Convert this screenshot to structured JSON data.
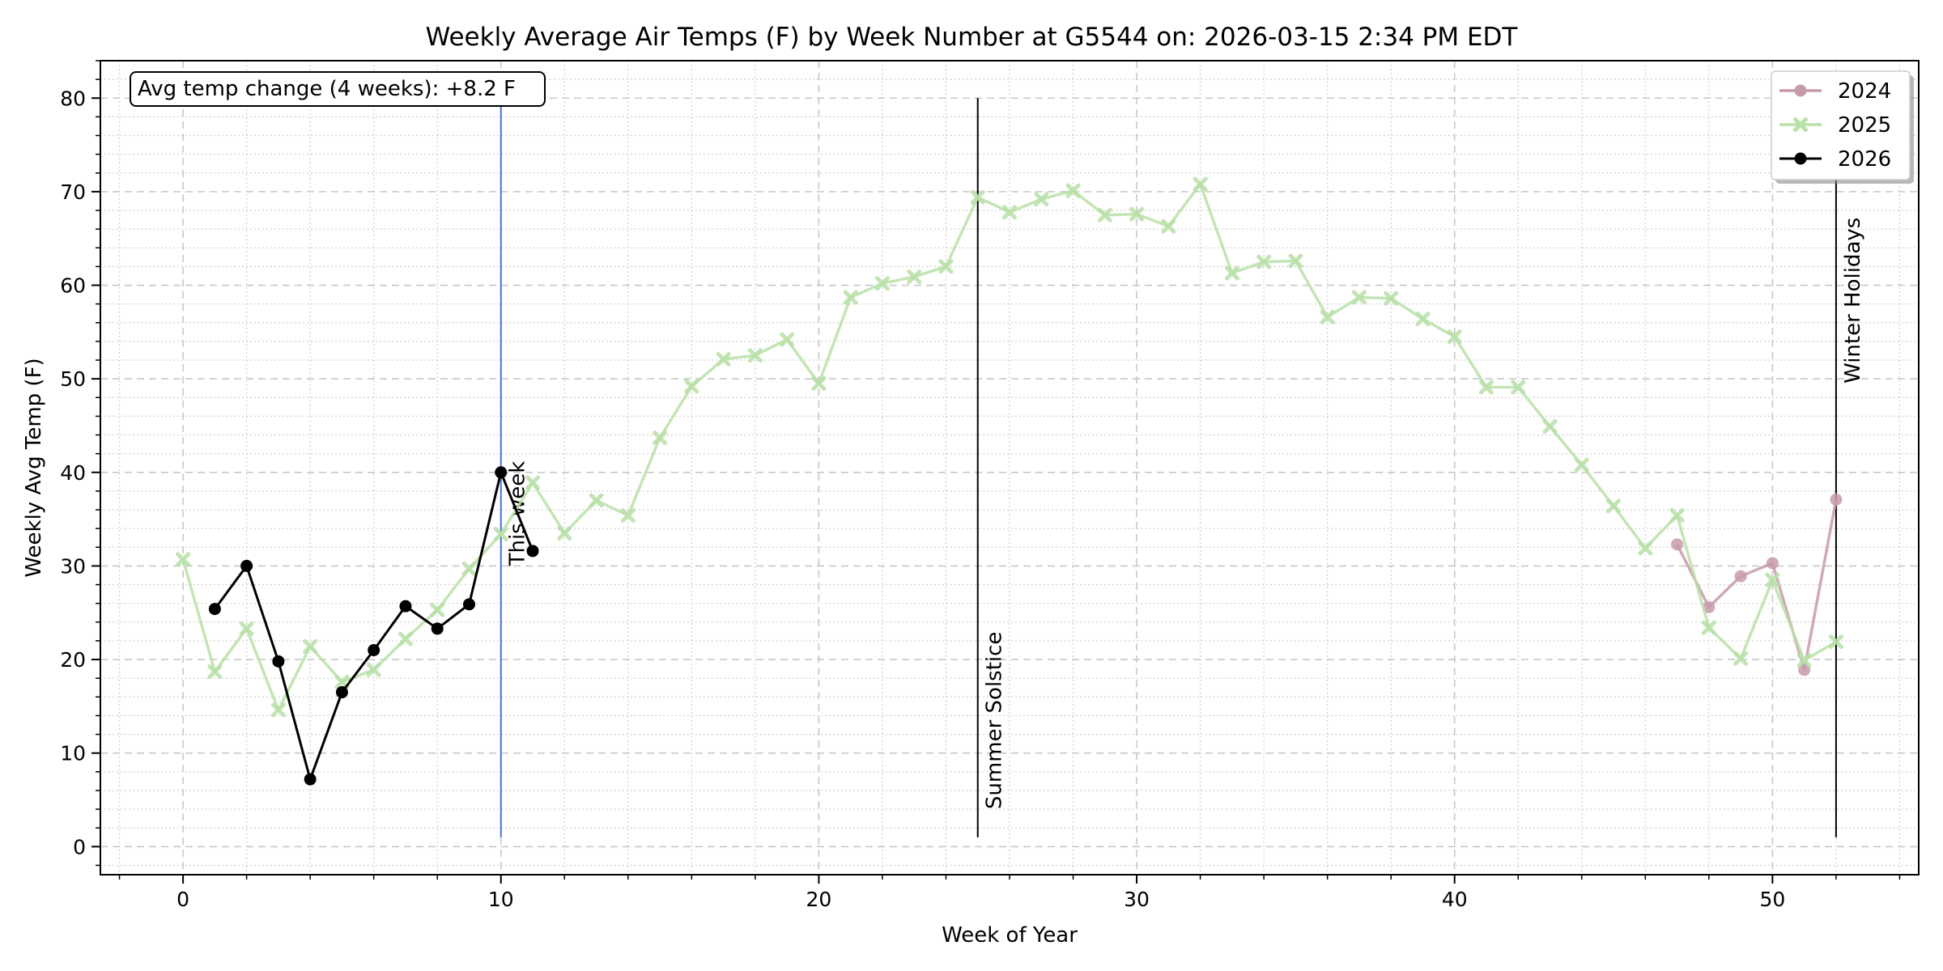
{
  "chart_data": {
    "type": "line",
    "title": "Weekly Average Air Temps (F) by Week Number at G5544 on: 2026-03-15 2:34 PM EDT",
    "xlabel": "Week of Year",
    "ylabel": "Weekly Avg Temp (F)",
    "xlim": [
      -2.6,
      54.6
    ],
    "ylim": [
      -3,
      84
    ],
    "x_ticks": [
      0,
      10,
      20,
      30,
      40,
      50
    ],
    "y_ticks": [
      0,
      10,
      20,
      30,
      40,
      50,
      60,
      70,
      80
    ],
    "grid": true,
    "legend_position": "top-right",
    "series": [
      {
        "name": "2024",
        "color": "#c79aaa",
        "marker": "circle",
        "x": [
          47,
          48,
          49,
          50,
          51,
          52
        ],
        "y": [
          32.3,
          25.6,
          28.9,
          30.3,
          18.9,
          37.1
        ]
      },
      {
        "name": "2025",
        "color": "#b9e0a8",
        "marker": "x",
        "x": [
          0,
          1,
          2,
          3,
          4,
          5,
          6,
          7,
          8,
          9,
          10,
          11,
          12,
          13,
          14,
          15,
          16,
          17,
          18,
          19,
          20,
          21,
          22,
          23,
          24,
          25,
          26,
          27,
          28,
          29,
          30,
          31,
          32,
          33,
          34,
          35,
          36,
          37,
          38,
          39,
          40,
          41,
          42,
          43,
          44,
          45,
          46,
          47,
          48,
          49,
          50,
          51,
          52
        ],
        "y": [
          30.7,
          18.7,
          23.3,
          14.6,
          21.4,
          17.6,
          18.9,
          22.2,
          25.3,
          29.7,
          33.4,
          38.9,
          33.5,
          37.0,
          35.4,
          43.7,
          49.2,
          52.1,
          52.5,
          54.2,
          49.5,
          58.7,
          60.2,
          60.9,
          62.0,
          69.4,
          67.8,
          69.2,
          70.1,
          67.5,
          67.6,
          66.3,
          70.8,
          61.3,
          62.5,
          62.6,
          56.6,
          58.7,
          58.6,
          56.4,
          54.5,
          49.1,
          49.1,
          44.9,
          40.8,
          36.4,
          31.9,
          35.4,
          23.4,
          20.1,
          28.5,
          19.9,
          21.9
        ]
      },
      {
        "name": "2026",
        "color": "#000000",
        "marker": "circle",
        "x": [
          1,
          2,
          3,
          4,
          5,
          6,
          7,
          8,
          9,
          10,
          11
        ],
        "y": [
          25.4,
          30.0,
          19.8,
          7.2,
          16.5,
          21.0,
          25.7,
          23.3,
          25.9,
          40.0,
          31.6
        ]
      }
    ],
    "vlines": [
      {
        "x": 10,
        "label": "This week",
        "color": "#4a6fd6",
        "y_range": [
          1,
          80
        ]
      },
      {
        "x": 25,
        "label": "Summer Solstice",
        "color": "#000000",
        "y_range": [
          1,
          80
        ]
      },
      {
        "x": 52,
        "label": "Winter Holidays",
        "color": "#000000",
        "y_range": [
          1,
          80
        ]
      }
    ],
    "annotation": "Avg temp change (4 weeks): +8.2 F"
  }
}
